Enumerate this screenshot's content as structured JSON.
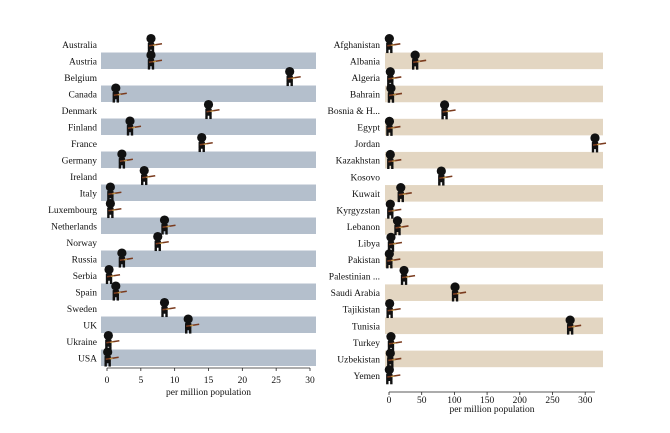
{
  "colors": {
    "left_band": "#b4bfcc",
    "right_band": "#e3d6c2",
    "figure": "#111111",
    "gun": "#7a3b1e",
    "axis": "#222222",
    "text": "#111111"
  },
  "chart_data": [
    {
      "type": "scatter",
      "marker_icon": "soldier-icon",
      "xlabel": "per million population",
      "xlim": [
        0,
        30
      ],
      "xticks": [
        0,
        5,
        10,
        15,
        20,
        25,
        30
      ],
      "categories": [
        "Australia",
        "Austria",
        "Belgium",
        "Canada",
        "Denmark",
        "Finland",
        "France",
        "Germany",
        "Ireland",
        "Italy",
        "Luxembourg",
        "Netherlands",
        "Norway",
        "Russia",
        "Serbia",
        "Spain",
        "Sweden",
        "UK",
        "Ukraine",
        "USA"
      ],
      "values": [
        6.5,
        6.5,
        27,
        1.3,
        15,
        3.4,
        14,
        2.2,
        5.5,
        0.5,
        0.5,
        8.5,
        7.5,
        2.2,
        0.3,
        1.3,
        8.5,
        12,
        0.2,
        0.1
      ]
    },
    {
      "type": "scatter",
      "marker_icon": "soldier-icon",
      "xlabel": "per million population",
      "xlim": [
        0,
        315
      ],
      "xticks": [
        0,
        50,
        100,
        150,
        200,
        250,
        300
      ],
      "categories": [
        "Afghanistan",
        "Albania",
        "Algeria",
        "Bahrain",
        "Bosnia & H...",
        "Egypt",
        "Jordan",
        "Kazakhstan",
        "Kosovo",
        "Kuwait",
        "Kyrgyzstan",
        "Lebanon",
        "Libya",
        "Pakistan",
        "Palestinian ...",
        "Saudi Arabia",
        "Tajikistan",
        "Tunisia",
        "Turkey",
        "Uzbekistan",
        "Yemen"
      ],
      "values": [
        0.5,
        40,
        2,
        3,
        85,
        0.7,
        315,
        2,
        80,
        18,
        2,
        13,
        3,
        0.5,
        23,
        101,
        1,
        277,
        3,
        2,
        0.5
      ]
    }
  ]
}
